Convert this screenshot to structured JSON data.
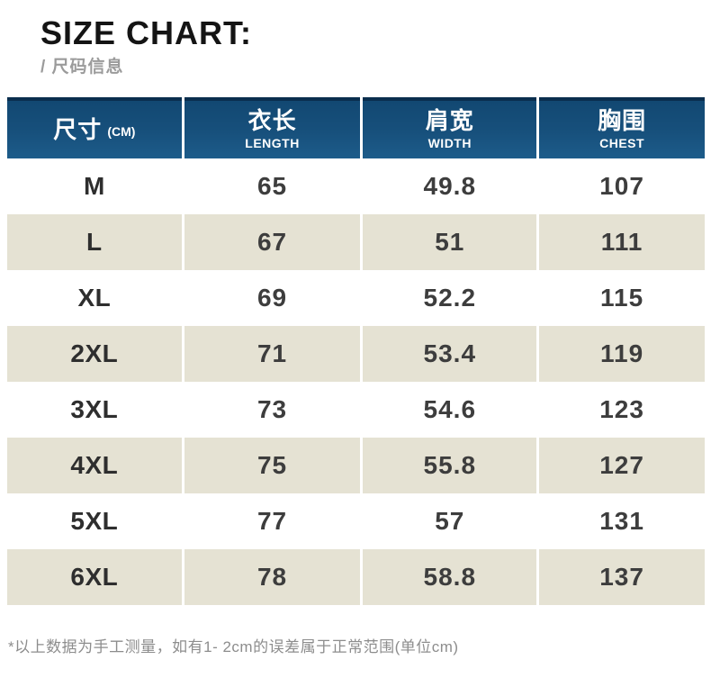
{
  "header": {
    "title": "SIZE CHART:",
    "subtitle": "/ 尺码信息"
  },
  "footnote": "*以上数据为手工测量，如有1- 2cm的误差属于正常范围(单位cm)",
  "colors": {
    "header_blue_top": "#124872",
    "header_blue_bottom": "#1d5c8a",
    "header_top_border": "#0a2e4e",
    "row_alt_beige": "#e5e2d3",
    "title_black": "#141414",
    "subtitle_gray": "#9b9b9b",
    "cell_text_dark": "#3d3d3d",
    "footnote_gray": "#8d8d8d"
  },
  "chart_data": {
    "type": "table",
    "title": "SIZE CHART: / 尺码信息",
    "columns": [
      {
        "key": "size",
        "zh": "尺寸",
        "sub": "(CM)"
      },
      {
        "key": "length",
        "zh": "衣长",
        "en": "LENGTH"
      },
      {
        "key": "width",
        "zh": "肩宽",
        "en": "WIDTH"
      },
      {
        "key": "chest",
        "zh": "胸围",
        "en": "CHEST"
      }
    ],
    "rows": [
      {
        "size": "M",
        "length": "65",
        "width": "49.8",
        "chest": "107"
      },
      {
        "size": "L",
        "length": "67",
        "width": "51",
        "chest": "111"
      },
      {
        "size": "XL",
        "length": "69",
        "width": "52.2",
        "chest": "115"
      },
      {
        "size": "2XL",
        "length": "71",
        "width": "53.4",
        "chest": "119"
      },
      {
        "size": "3XL",
        "length": "73",
        "width": "54.6",
        "chest": "123"
      },
      {
        "size": "4XL",
        "length": "75",
        "width": "55.8",
        "chest": "127"
      },
      {
        "size": "5XL",
        "length": "77",
        "width": "57",
        "chest": "131"
      },
      {
        "size": "6XL",
        "length": "78",
        "width": "58.8",
        "chest": "137"
      }
    ]
  }
}
